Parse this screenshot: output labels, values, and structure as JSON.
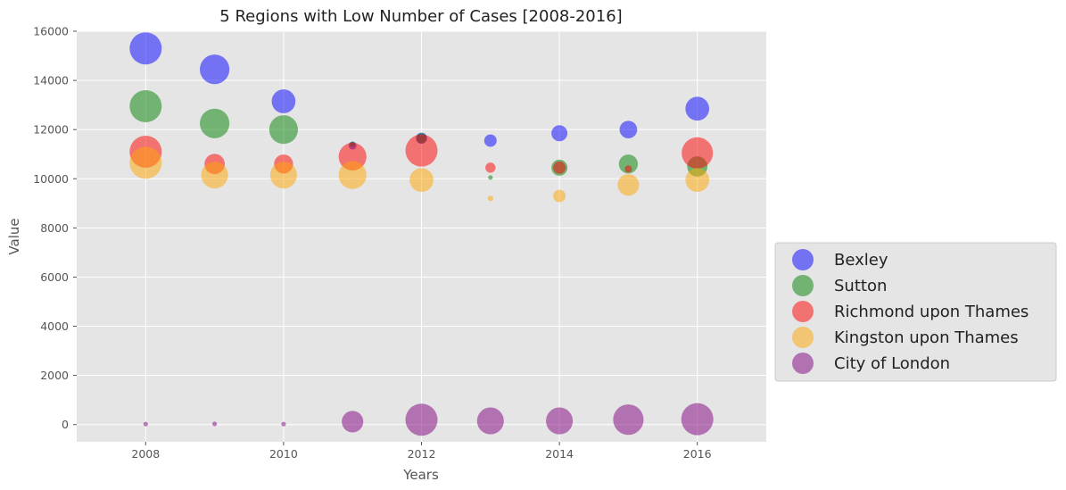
{
  "chart_data": {
    "type": "scatter",
    "title": "5 Regions with Low Number of Cases [2008-2016]",
    "xlabel": "Years",
    "ylabel": "Value",
    "xlim": [
      2007,
      2017
    ],
    "ylim": [
      -700,
      16000
    ],
    "xticks": [
      2008,
      2010,
      2012,
      2014,
      2016
    ],
    "yticks": [
      0,
      2000,
      4000,
      6000,
      8000,
      10000,
      12000,
      14000,
      16000
    ],
    "grid": true,
    "legend_position": "outside-right",
    "x": [
      2008,
      2009,
      2010,
      2011,
      2012,
      2013,
      2014,
      2015,
      2016
    ],
    "series": [
      {
        "name": "Bexley",
        "color": "#0000ff",
        "values": [
          15300,
          14450,
          13150,
          11350,
          11650,
          11550,
          11850,
          12000,
          12850
        ],
        "sizes": [
          1.0,
          0.85,
          0.55,
          0.06,
          0.12,
          0.15,
          0.25,
          0.3,
          0.55
        ]
      },
      {
        "name": "Sutton",
        "color": "#008000",
        "values": [
          12950,
          12250,
          12000,
          11400,
          11650,
          10050,
          10450,
          10600,
          10500
        ],
        "sizes": [
          1.0,
          0.85,
          0.8,
          0.03,
          0.1,
          0.02,
          0.25,
          0.35,
          0.4
        ]
      },
      {
        "name": "Richmond upon Thames",
        "color": "#ff0000",
        "values": [
          11100,
          10600,
          10600,
          10900,
          11150,
          10450,
          10450,
          10400,
          11050
        ],
        "sizes": [
          1.0,
          0.4,
          0.35,
          0.75,
          1.0,
          0.1,
          0.15,
          0.05,
          0.95
        ]
      },
      {
        "name": "Kingston upon Thames",
        "color": "#ffa500",
        "values": [
          10650,
          10150,
          10150,
          10150,
          9950,
          9200,
          9300,
          9750,
          9950
        ],
        "sizes": [
          1.0,
          0.7,
          0.7,
          0.75,
          0.55,
          0.03,
          0.15,
          0.45,
          0.55
        ]
      },
      {
        "name": "City of London",
        "color": "#800080",
        "values": [
          20,
          30,
          20,
          120,
          200,
          150,
          150,
          200,
          220
        ],
        "sizes": [
          0.02,
          0.02,
          0.02,
          0.45,
          1.0,
          0.7,
          0.7,
          0.9,
          1.0
        ]
      }
    ]
  }
}
